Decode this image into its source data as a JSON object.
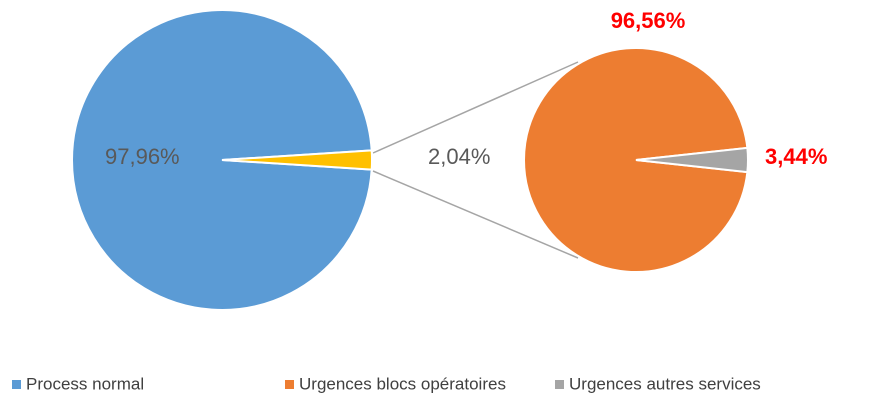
{
  "chart_data": {
    "type": "pie-of-pie",
    "pie": {
      "categories": [
        "Process normal",
        null
      ],
      "values": [
        97.96,
        2.04
      ],
      "value_labels": [
        "97,96%",
        "2,04%"
      ],
      "colors": [
        "#5b9bd5",
        "#ffc000"
      ]
    },
    "sub_pie": {
      "categories": [
        "Urgences blocs opératoires",
        "Urgences autres services"
      ],
      "values": [
        96.56,
        3.44
      ],
      "value_labels": [
        "96,56%",
        "3,44%"
      ],
      "colors": [
        "#ed7d31",
        "#a5a5a5"
      ]
    },
    "legend": "bottom"
  }
}
